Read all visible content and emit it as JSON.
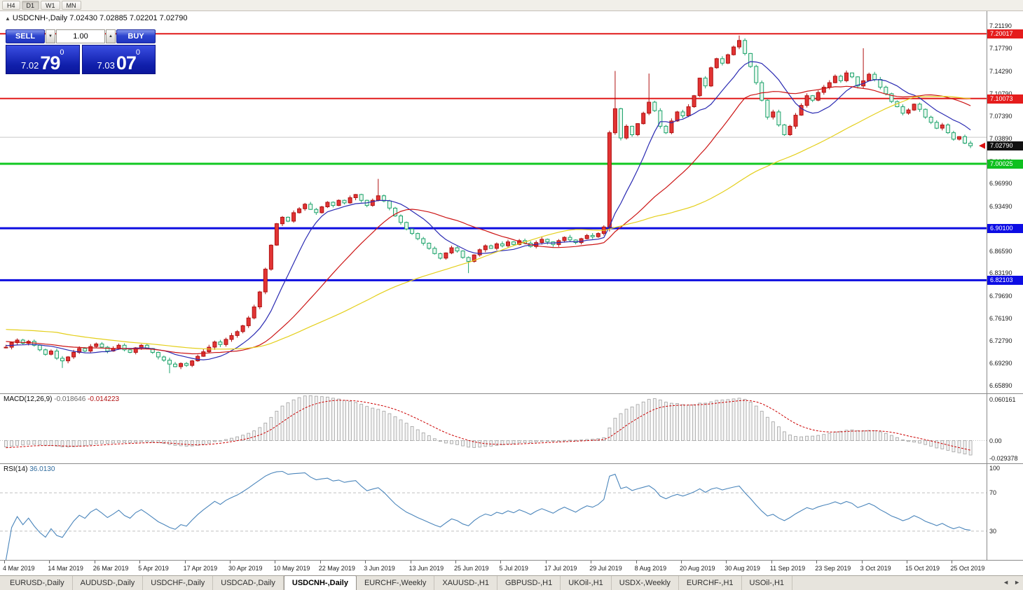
{
  "toolbar": {
    "timeframes": [
      {
        "label": "H4",
        "active": false
      },
      {
        "label": "D1",
        "active": true
      },
      {
        "label": "W1",
        "active": false
      },
      {
        "label": "MN",
        "active": false
      }
    ]
  },
  "chart": {
    "title_marker": "▲",
    "title": "USDCNH-,Daily",
    "ohlc_text": "7.02430 7.02885 7.02201 7.02790",
    "current_price": 7.0279,
    "current_arrow_color": "#dd1111",
    "trade_panel": {
      "sell_label": "SELL",
      "buy_label": "BUY",
      "volume": "1.00",
      "spinner_down": "▼",
      "spinner_up": "▲",
      "sell_price_small": "7.02",
      "sell_price_big": "79",
      "sell_price_sup": "0",
      "buy_price_small": "7.03",
      "buy_price_big": "07",
      "buy_price_sup": "0"
    },
    "scale": {
      "max": 7.235,
      "min": 6.647
    },
    "price_axis_labels": [
      "7.21190",
      "7.17790",
      "7.14290",
      "7.10790",
      "7.07390",
      "7.03890",
      "7.00390",
      "6.96990",
      "6.93490",
      "6.89990",
      "6.86590",
      "6.83190",
      "6.79690",
      "6.76190",
      "6.72790",
      "6.69290",
      "6.65890"
    ],
    "badges": [
      {
        "text": "7.20017",
        "price": 7.20017,
        "kind": "red"
      },
      {
        "text": "7.10073",
        "price": 7.10073,
        "kind": "red"
      },
      {
        "text": "7.02790",
        "price": 7.0279,
        "kind": "black"
      },
      {
        "text": "7.00025",
        "price": 7.00025,
        "kind": "green"
      },
      {
        "text": "6.90100",
        "price": 6.901,
        "kind": "blue"
      },
      {
        "text": "6.82103",
        "price": 6.82103,
        "kind": "blue"
      }
    ],
    "hlines": [
      {
        "price": 7.20017,
        "color": "#e11b1b",
        "w": 2
      },
      {
        "price": 7.10073,
        "color": "#e11b1b",
        "w": 2
      },
      {
        "price": 7.00025,
        "color": "#12c822",
        "w": 3
      },
      {
        "price": 6.901,
        "color": "#0d0de0",
        "w": 3
      },
      {
        "price": 6.82103,
        "color": "#0d0de0",
        "w": 3
      },
      {
        "price": 7.041,
        "color": "#c8c8c8",
        "w": 1
      }
    ]
  },
  "chart_data": {
    "type": "candlestick",
    "title": "USDCNH-,Daily",
    "symbol": "USDCNH-",
    "timeframe": "Daily",
    "ohlc_current": {
      "open": 7.0243,
      "high": 7.02885,
      "low": 7.02201,
      "close": 7.0279
    },
    "y_axis_range": [
      6.647,
      7.235
    ],
    "label_every": 8,
    "date_labels": [
      "4 Mar 2019",
      "14 Mar 2019",
      "26 Mar 2019",
      "5 Apr 2019",
      "17 Apr 2019",
      "30 Apr 2019",
      "10 May 2019",
      "22 May 2019",
      "3 Jun 2019",
      "13 Jun 2019",
      "25 Jun 2019",
      "5 Jul 2019",
      "17 Jul 2019",
      "29 Jul 2019",
      "8 Aug 2019",
      "20 Aug 2019",
      "30 Aug 2019",
      "11 Sep 2019",
      "23 Sep 2019",
      "3 Oct 2019",
      "15 Oct 2019",
      "25 Oct 2019"
    ],
    "ma_periods": [
      {
        "period": 10,
        "color_key": "ma_fast"
      },
      {
        "period": 25,
        "color_key": "ma_mid"
      },
      {
        "period": 55,
        "color_key": "ma_slow"
      }
    ],
    "pre_closes": [
      6.792,
      6.79,
      6.787,
      6.785,
      6.782,
      6.78,
      6.778,
      6.775,
      6.772,
      6.77,
      6.768,
      6.765,
      6.762,
      6.76,
      6.757,
      6.755,
      6.752,
      6.75,
      6.748,
      6.745,
      6.743,
      6.74,
      6.738,
      6.737,
      6.735,
      6.734,
      6.732,
      6.731,
      6.73,
      6.729,
      6.728,
      6.727,
      6.726,
      6.726,
      6.725,
      6.724,
      6.724,
      6.723,
      6.722,
      6.722,
      6.721,
      6.72,
      6.72,
      6.719,
      6.718
    ],
    "closes": [
      6.718,
      6.725,
      6.729,
      6.724,
      6.727,
      6.721,
      6.714,
      6.707,
      6.712,
      6.701,
      6.697,
      6.703,
      6.71,
      6.716,
      6.712,
      6.719,
      6.723,
      6.718,
      6.712,
      6.716,
      6.721,
      6.714,
      6.71,
      6.717,
      6.721,
      6.716,
      6.71,
      6.703,
      6.698,
      6.692,
      6.688,
      6.693,
      6.69,
      6.697,
      6.704,
      6.711,
      6.718,
      6.726,
      6.722,
      6.73,
      6.736,
      6.742,
      6.751,
      6.763,
      6.78,
      6.803,
      6.838,
      6.875,
      6.908,
      6.918,
      6.912,
      6.925,
      6.931,
      6.938,
      6.93,
      6.925,
      6.934,
      6.941,
      6.936,
      6.944,
      6.94,
      6.948,
      6.953,
      6.944,
      6.936,
      6.944,
      6.951,
      6.943,
      6.932,
      6.92,
      6.91,
      6.9,
      6.893,
      6.885,
      6.878,
      6.87,
      6.862,
      6.855,
      6.863,
      6.871,
      6.866,
      6.856,
      6.85,
      6.86,
      6.868,
      6.874,
      6.87,
      6.877,
      6.874,
      6.88,
      6.876,
      6.882,
      6.878,
      6.873,
      6.879,
      6.884,
      6.88,
      6.876,
      6.882,
      6.887,
      6.883,
      6.879,
      6.885,
      6.89,
      6.888,
      6.893,
      6.903,
      7.048,
      7.085,
      7.04,
      7.058,
      7.045,
      7.062,
      7.078,
      7.095,
      7.082,
      7.058,
      7.048,
      7.066,
      7.08,
      7.074,
      7.088,
      7.105,
      7.132,
      7.12,
      7.148,
      7.162,
      7.155,
      7.168,
      7.18,
      7.19,
      7.17,
      7.15,
      7.125,
      7.098,
      7.072,
      7.08,
      7.06,
      7.045,
      7.058,
      7.075,
      7.09,
      7.105,
      7.098,
      7.11,
      7.118,
      7.125,
      7.135,
      7.128,
      7.14,
      7.134,
      7.12,
      7.128,
      7.138,
      7.13,
      7.118,
      7.108,
      7.096,
      7.088,
      7.078,
      7.083,
      7.092,
      7.084,
      7.072,
      7.064,
      7.055,
      7.06,
      7.048,
      7.038,
      7.042,
      7.032,
      7.0279
    ],
    "wick_overrides": {
      "10": {
        "l": 6.686
      },
      "29": {
        "l": 6.678
      },
      "66": {
        "h": 6.977
      },
      "82": {
        "l": 6.832
      },
      "107": {
        "l": 6.896
      },
      "108": {
        "h": 7.143
      },
      "114": {
        "h": 7.139
      },
      "130": {
        "h": 7.1975
      },
      "152": {
        "h": 7.178
      }
    }
  },
  "macd": {
    "label": "MACD(12,26,9)",
    "main_value": "-0.018646",
    "signal_value": "-0.014223",
    "fast": 12,
    "slow": 26,
    "signal": 9,
    "axis_top": "0.060161",
    "axis_zero": "0.00",
    "axis_bottom": "-0.029378",
    "range_max": 0.060161,
    "range_min": -0.029378
  },
  "rsi": {
    "label": "RSI(14)",
    "value": "36.0130",
    "period": 14,
    "axis": [
      {
        "text": "100",
        "v": 100
      },
      {
        "text": "70",
        "v": 70
      },
      {
        "text": "30",
        "v": 30
      }
    ],
    "levels": [
      70,
      30
    ]
  },
  "tabs": {
    "items": [
      {
        "label": "EURUSD-,Daily",
        "active": false
      },
      {
        "label": "AUDUSD-,Daily",
        "active": false
      },
      {
        "label": "USDCHF-,Daily",
        "active": false
      },
      {
        "label": "USDCAD-,Daily",
        "active": false
      },
      {
        "label": "USDCNH-,Daily",
        "active": true
      },
      {
        "label": "EURCHF-,Weekly",
        "active": false
      },
      {
        "label": "XAUUSD-,H1",
        "active": false
      },
      {
        "label": "GBPUSD-,H1",
        "active": false
      },
      {
        "label": "UKOil-,H1",
        "active": false
      },
      {
        "label": "USDX-,Weekly",
        "active": false
      },
      {
        "label": "EURCHF-,H1",
        "active": false
      },
      {
        "label": "USOil-,H1",
        "active": false
      }
    ],
    "scroll_left": "◄",
    "scroll_right": "►"
  },
  "theme": {
    "up_fill": "#e23434",
    "up_stroke": "#b01212",
    "down_fill": "#e7f7ee",
    "down_stroke": "#1ea36c",
    "ma_fast": "#2a2ab2",
    "ma_mid": "#cc1414",
    "ma_slow": "#e4cf1b",
    "macd_bar_fill": "#f4f4f4",
    "macd_bar_stroke": "#a0a0a0",
    "macd_signal": "#cc0000",
    "rsi_line": "#4a85bb",
    "level_line": "#c0c0c0"
  }
}
